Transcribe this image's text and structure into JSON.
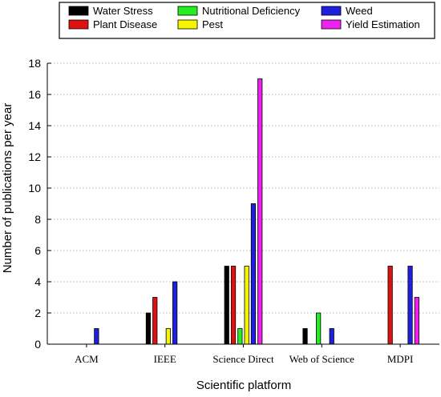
{
  "chart_data": {
    "type": "bar",
    "title": "",
    "xlabel": "Scientific platform",
    "ylabel": "Number of publications per year",
    "categories": [
      "ACM",
      "IEEE",
      "Science Direct",
      "Web of Science",
      "MDPI"
    ],
    "ylim": [
      0,
      18
    ],
    "yticks": [
      0,
      2,
      4,
      6,
      8,
      10,
      12,
      14,
      16,
      18
    ],
    "grid": true,
    "grid_style": "dotted horizontal",
    "legend_position": "top",
    "series": [
      {
        "name": "Water Stress",
        "color": "#000000",
        "values": [
          0,
          2,
          5,
          1,
          0
        ]
      },
      {
        "name": "Plant Disease",
        "color": "#e01010",
        "values": [
          0,
          3,
          5,
          0,
          5
        ]
      },
      {
        "name": "Nutritional Deficiency",
        "color": "#22ee22",
        "values": [
          0,
          0,
          1,
          2,
          0
        ]
      },
      {
        "name": "Pest",
        "color": "#f5f500",
        "values": [
          0,
          1,
          5,
          0,
          0
        ]
      },
      {
        "name": "Weed",
        "color": "#1f1fe0",
        "values": [
          1,
          4,
          9,
          1,
          5
        ]
      },
      {
        "name": "Yield Estimation",
        "color": "#ee22ee",
        "values": [
          0,
          0,
          17,
          0,
          3
        ]
      }
    ]
  }
}
